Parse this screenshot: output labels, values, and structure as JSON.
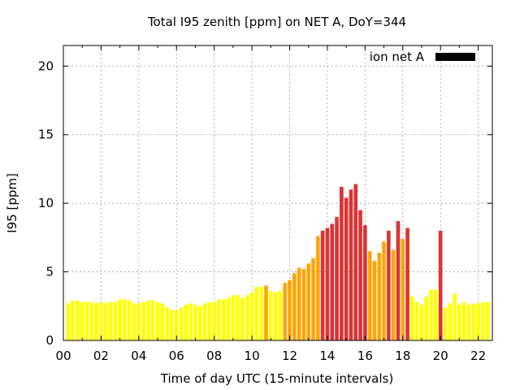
{
  "chart_data": {
    "type": "bar",
    "title": "Total I95 zenith [ppm] on NET A, DoY=344",
    "xlabel": "Time of day UTC (15-minute intervals)",
    "ylabel": "I95 [ppm]",
    "xlim": [
      0,
      22.75
    ],
    "ylim": [
      0,
      21.5
    ],
    "x_ticks": [
      0,
      2,
      4,
      6,
      8,
      10,
      12,
      14,
      16,
      18,
      20,
      22
    ],
    "x_tick_labels": [
      "00",
      "02",
      "04",
      "06",
      "08",
      "10",
      "12",
      "14",
      "16",
      "18",
      "20",
      "22"
    ],
    "y_ticks": [
      0,
      5,
      10,
      15,
      20
    ],
    "y_tick_labels": [
      "0",
      "5",
      "10",
      "15",
      "20"
    ],
    "grid": true,
    "bar_width_hours": 0.2,
    "legend": {
      "label": "ion net A",
      "color": "#000000",
      "position": "top-right"
    },
    "level_colors": {
      "low": "#ffff00",
      "moderate": "#ffa500",
      "high": "#dd3333"
    },
    "series": [
      {
        "name": "ion net A",
        "x": [
          0.25,
          0.5,
          0.75,
          1.0,
          1.25,
          1.5,
          1.75,
          2.0,
          2.25,
          2.5,
          2.75,
          3.0,
          3.25,
          3.5,
          3.75,
          4.0,
          4.25,
          4.5,
          4.75,
          5.0,
          5.25,
          5.5,
          5.75,
          6.0,
          6.25,
          6.5,
          6.75,
          7.0,
          7.25,
          7.5,
          7.75,
          8.0,
          8.25,
          8.5,
          8.75,
          9.0,
          9.25,
          9.5,
          9.75,
          10.0,
          10.25,
          10.5,
          10.75,
          11.0,
          11.25,
          11.5,
          11.75,
          12.0,
          12.25,
          12.5,
          12.75,
          13.0,
          13.25,
          13.5,
          13.75,
          14.0,
          14.25,
          14.5,
          14.75,
          15.0,
          15.25,
          15.5,
          15.75,
          16.0,
          16.25,
          16.5,
          16.75,
          17.0,
          17.25,
          17.5,
          17.75,
          18.0,
          18.25,
          18.5,
          18.75,
          19.0,
          19.25,
          19.5,
          19.75,
          20.0,
          20.25,
          20.5,
          20.75,
          21.0,
          21.25,
          21.5,
          21.75,
          22.0,
          22.25,
          22.5
        ],
        "values": [
          2.7,
          2.9,
          2.9,
          2.8,
          2.8,
          2.8,
          2.7,
          2.8,
          2.7,
          2.8,
          2.8,
          3.0,
          3.0,
          2.9,
          2.7,
          2.7,
          2.8,
          2.9,
          2.9,
          2.8,
          2.7,
          2.4,
          2.2,
          2.2,
          2.4,
          2.6,
          2.7,
          2.6,
          2.5,
          2.7,
          2.8,
          2.8,
          3.0,
          3.0,
          3.1,
          3.3,
          3.3,
          3.1,
          3.3,
          3.5,
          3.9,
          3.9,
          4.0,
          3.6,
          3.5,
          3.6,
          4.2,
          4.4,
          4.9,
          5.3,
          5.2,
          5.6,
          6.0,
          7.6,
          8.0,
          8.2,
          8.5,
          9.0,
          11.2,
          10.4,
          11.0,
          11.4,
          9.5,
          8.4,
          6.5,
          5.8,
          6.4,
          7.2,
          8.0,
          6.6,
          8.7,
          7.4,
          8.2,
          3.2,
          2.8,
          2.6,
          3.2,
          3.7,
          3.7,
          8.0,
          2.4,
          2.7,
          3.4,
          2.6,
          2.8,
          2.6,
          2.7,
          2.7,
          2.8,
          2.8
        ],
        "levels": [
          "low",
          "low",
          "low",
          "low",
          "low",
          "low",
          "low",
          "low",
          "low",
          "low",
          "low",
          "low",
          "low",
          "low",
          "low",
          "low",
          "low",
          "low",
          "low",
          "low",
          "low",
          "low",
          "low",
          "low",
          "low",
          "low",
          "low",
          "low",
          "low",
          "low",
          "low",
          "low",
          "low",
          "low",
          "low",
          "low",
          "low",
          "low",
          "low",
          "low",
          "low",
          "low",
          "moderate",
          "low",
          "low",
          "low",
          "moderate",
          "moderate",
          "moderate",
          "moderate",
          "moderate",
          "moderate",
          "moderate",
          "moderate",
          "high",
          "high",
          "high",
          "high",
          "high",
          "high",
          "high",
          "high",
          "high",
          "high",
          "moderate",
          "moderate",
          "moderate",
          "moderate",
          "high",
          "moderate",
          "high",
          "moderate",
          "high",
          "low",
          "low",
          "low",
          "low",
          "low",
          "low",
          "high",
          "low",
          "low",
          "low",
          "low",
          "low",
          "low",
          "low",
          "low",
          "low",
          "low"
        ]
      }
    ]
  }
}
